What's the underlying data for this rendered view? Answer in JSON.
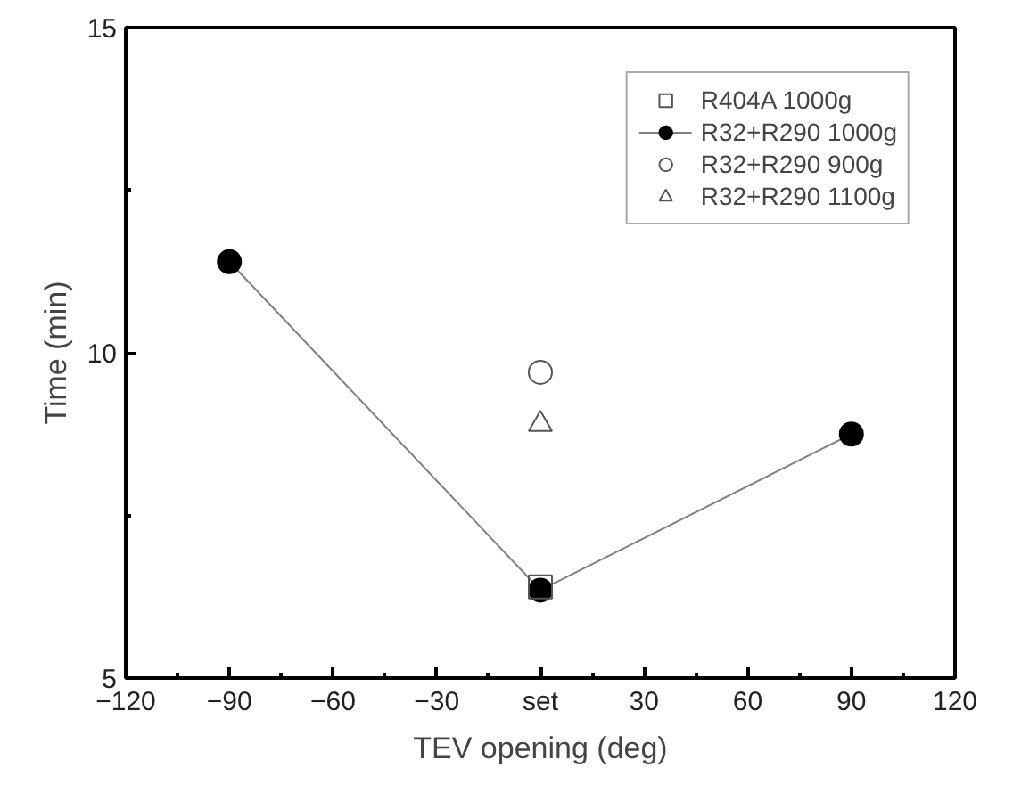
{
  "chart_data": {
    "type": "line",
    "xlabel": "TEV opening (deg)",
    "ylabel": "Time (min)",
    "xlim": [
      -120,
      120
    ],
    "xticks": [
      -120,
      -90,
      -60,
      -30,
      {
        "value": 0,
        "label": "set"
      },
      30,
      60,
      90,
      120
    ],
    "ylim": [
      5,
      15
    ],
    "yticks": [
      5,
      10,
      15
    ],
    "legend": "top right",
    "grid": false,
    "series": [
      {
        "name": "R404A 1000g",
        "type": "scatter",
        "marker": "square",
        "color": "#555555",
        "x": [
          0
        ],
        "values": [
          6.4
        ]
      },
      {
        "name": "R32+R290 1000g",
        "marker": "circle",
        "color": "#000000",
        "x": [
          -90,
          0,
          90
        ],
        "values": [
          11.4,
          6.35,
          8.75
        ]
      },
      {
        "name": "R32+R290 900g",
        "type": "scatter",
        "marker": "circle",
        "color": "#555555",
        "x": [
          0
        ],
        "values": [
          9.7
        ]
      },
      {
        "name": "R32+R290 1100g",
        "type": "scatter",
        "marker": "triangle",
        "color": "#555555",
        "x": [
          0
        ],
        "values": [
          8.9
        ]
      }
    ]
  }
}
